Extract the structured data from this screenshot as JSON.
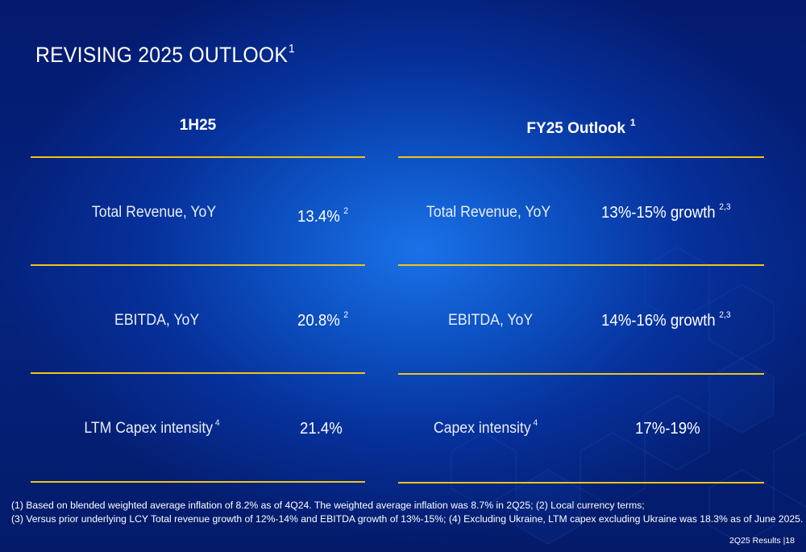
{
  "title": {
    "text": "REVISING 2025 OUTLOOK",
    "sup": "1"
  },
  "left_column": {
    "heading": "1H25",
    "rows": [
      {
        "label": "Total Revenue, YoY",
        "label_sup": "",
        "value": "13.4%",
        "value_sup": "2"
      },
      {
        "label": "EBITDA, YoY",
        "label_sup": "",
        "value": "20.8%",
        "value_sup": "2"
      },
      {
        "label": "LTM Capex intensity",
        "label_sup": "4",
        "value": "21.4%",
        "value_sup": ""
      }
    ]
  },
  "right_column": {
    "heading": "FY25 Outlook",
    "heading_sup": "1",
    "rows": [
      {
        "label": "Total Revenue, YoY",
        "label_sup": "",
        "value": "13%-15% growth",
        "value_sup": "2,3"
      },
      {
        "label": "EBITDA, YoY",
        "label_sup": "",
        "value": "14%-16% growth",
        "value_sup": "2,3"
      },
      {
        "label": "Capex intensity",
        "label_sup": "4",
        "value": "17%-19%",
        "value_sup": ""
      }
    ]
  },
  "footnotes": [
    "(1) Based on blended weighted average inflation of 8.2% as of 4Q24. The weighted average inflation was 8.7% in 2Q25; (2) Local currency terms;",
    "(3) Versus prior underlying LCY Total revenue growth of 12%-14% and EBITDA growth of 13%-15%; (4) Excluding Ukraine, LTM capex excluding Ukraine was 18.3% as of June 2025."
  ],
  "footer": "2Q25 Results |18",
  "colors": {
    "accent_rule": "#f0c419",
    "background_center": "#1a72e8",
    "background_edge": "#041a6e"
  }
}
